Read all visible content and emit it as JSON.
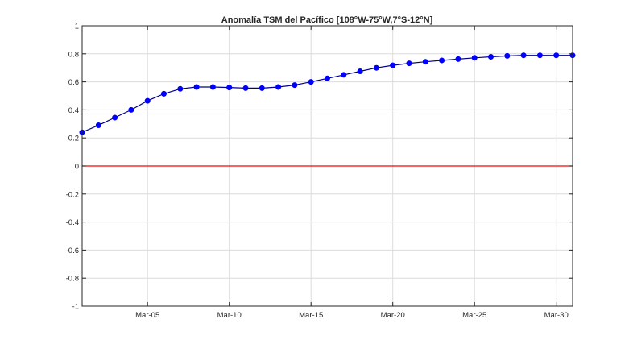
{
  "chart_data": {
    "type": "line",
    "title": "Anomalía TSM del Pacífico [108°W-75°W,7°S-12°N]",
    "xlabel": "",
    "ylabel": "",
    "x_unit": "day of March",
    "xlim": [
      1,
      31
    ],
    "ylim": [
      -1,
      1
    ],
    "grid": true,
    "xticks": [
      {
        "value": 5,
        "label": "Mar-05"
      },
      {
        "value": 10,
        "label": "Mar-10"
      },
      {
        "value": 15,
        "label": "Mar-15"
      },
      {
        "value": 20,
        "label": "Mar-20"
      },
      {
        "value": 25,
        "label": "Mar-25"
      },
      {
        "value": 30,
        "label": "Mar-30"
      }
    ],
    "yticks": [
      {
        "value": 1,
        "label": "1"
      },
      {
        "value": 0.8,
        "label": "0.8"
      },
      {
        "value": 0.6,
        "label": "0.6"
      },
      {
        "value": 0.4,
        "label": "0.4"
      },
      {
        "value": 0.2,
        "label": "0.2"
      },
      {
        "value": 0,
        "label": "0"
      },
      {
        "value": -0.2,
        "label": "-0.2"
      },
      {
        "value": -0.4,
        "label": "-0.4"
      },
      {
        "value": -0.6,
        "label": "-0.6"
      },
      {
        "value": -0.8,
        "label": "-0.8"
      },
      {
        "value": -1,
        "label": "-1"
      }
    ],
    "series": [
      {
        "color": "#0000ff",
        "marker": "circle",
        "x": [
          1,
          2,
          3,
          4,
          5,
          6,
          7,
          8,
          9,
          10,
          11,
          12,
          13,
          14,
          15,
          16,
          17,
          18,
          19,
          20,
          21,
          22,
          23,
          24,
          25,
          26,
          27,
          28,
          29,
          30,
          31
        ],
        "values": [
          0.24,
          0.29,
          0.345,
          0.4,
          0.465,
          0.515,
          0.55,
          0.563,
          0.563,
          0.56,
          0.555,
          0.555,
          0.563,
          0.577,
          0.6,
          0.625,
          0.65,
          0.675,
          0.7,
          0.718,
          0.732,
          0.743,
          0.753,
          0.762,
          0.771,
          0.779,
          0.785,
          0.789,
          0.789,
          0.789,
          0.789
        ]
      }
    ],
    "reference_line": {
      "y": 0,
      "color": "#ff0000"
    },
    "line_color": "#00008b"
  }
}
